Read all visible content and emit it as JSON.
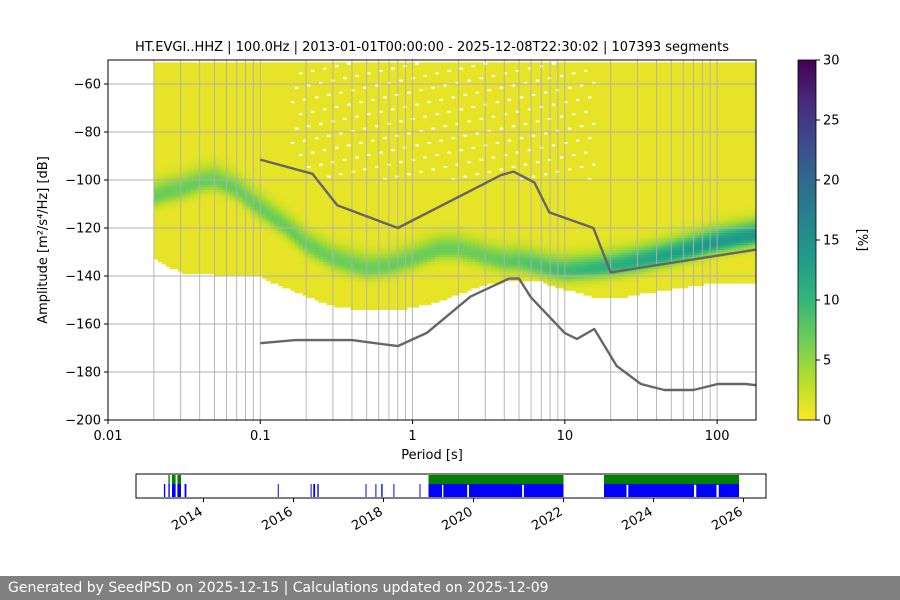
{
  "chart_data": [
    {
      "type": "heatmap",
      "title": "HT.EVGI..HHZ | 100.0Hz | 2013-01-01T00:00:00 - 2025-12-08T22:30:02 | 107393 segments",
      "xlabel": "Period [s]",
      "ylabel": "Amplitude [m²/s⁴/Hz] [dB]",
      "x_scale": "log",
      "xlim": [
        0.01,
        180
      ],
      "ylim": [
        -200,
        -50
      ],
      "x_ticks": [
        {
          "value": 0.01,
          "label": "0.01"
        },
        {
          "value": 0.1,
          "label": "0.1"
        },
        {
          "value": 1,
          "label": "1"
        },
        {
          "value": 10,
          "label": "10"
        },
        {
          "value": 100,
          "label": "100"
        }
      ],
      "y_ticks": [
        {
          "value": -60,
          "label": "−60"
        },
        {
          "value": -80,
          "label": "−80"
        },
        {
          "value": -100,
          "label": "−100"
        },
        {
          "value": -120,
          "label": "−120"
        },
        {
          "value": -140,
          "label": "−140"
        },
        {
          "value": -160,
          "label": "−160"
        },
        {
          "value": -180,
          "label": "−180"
        },
        {
          "value": -200,
          "label": "−200"
        }
      ],
      "grid_periods": [
        0.02,
        0.03,
        0.04,
        0.05,
        0.06,
        0.07,
        0.08,
        0.09,
        0.1,
        0.2,
        0.3,
        0.4,
        0.5,
        0.6,
        0.7,
        0.8,
        0.9,
        1,
        2,
        3,
        4,
        5,
        6,
        7,
        8,
        9,
        10,
        20,
        30,
        40,
        50,
        60,
        70,
        80,
        90,
        100
      ],
      "colorbar": {
        "label": "[%]",
        "range": [
          0,
          30
        ],
        "ticks": [
          "0",
          "5",
          "10",
          "15",
          "20",
          "25",
          "30"
        ],
        "colormap": "viridis_r",
        "colors": [
          "#fde725",
          "#b5de2b",
          "#6ece58",
          "#35b779",
          "#1f9e89",
          "#26828e",
          "#31688e",
          "#3e4989",
          "#482878",
          "#440154"
        ]
      },
      "density_envelope": {
        "period": [
          0.02,
          0.03,
          0.05,
          0.1,
          0.2,
          0.3,
          0.5,
          0.8,
          1.5,
          3,
          5,
          7,
          10,
          15,
          20,
          40,
          80,
          180
        ],
        "upper_db": [
          -51,
          -51,
          -51,
          -51,
          -51,
          -51,
          -51,
          -51,
          -51,
          -51,
          -51,
          -51,
          -51,
          -51,
          -51,
          -51,
          -51,
          -51
        ],
        "lower_db": [
          -132,
          -138,
          -139,
          -140,
          -148,
          -152,
          -154,
          -154,
          -150,
          -143,
          -141,
          -142,
          -145,
          -148,
          -149,
          -146,
          -143,
          -142
        ]
      },
      "mode_line": {
        "period": [
          0.02,
          0.025,
          0.03,
          0.04,
          0.05,
          0.07,
          0.1,
          0.15,
          0.2,
          0.3,
          0.5,
          0.7,
          1,
          1.5,
          2,
          3,
          4,
          5,
          6,
          8,
          10,
          15,
          20,
          30,
          50,
          100,
          180
        ],
        "db": [
          -107,
          -105,
          -104,
          -101,
          -100,
          -104,
          -112,
          -120,
          -127,
          -133,
          -137,
          -136,
          -133,
          -129,
          -129,
          -132,
          -134,
          -134,
          -135,
          -137,
          -138,
          -137,
          -136,
          -134,
          -131,
          -126,
          -123
        ]
      },
      "series": [
        {
          "name": "NHNM",
          "color": "#666666",
          "period": [
            0.1,
            0.22,
            0.32,
            0.8,
            3.8,
            4.6,
            6.3,
            7.9,
            15.4,
            20,
            180
          ],
          "db": [
            -91.5,
            -97.4,
            -110.5,
            -120,
            -98,
            -96.5,
            -101,
            -113.5,
            -120,
            -138.5,
            -129
          ]
        },
        {
          "name": "NLNM",
          "color": "#666666",
          "period": [
            0.1,
            0.17,
            0.4,
            0.8,
            1.24,
            2.4,
            4.3,
            5,
            6,
            10,
            12,
            15.6,
            21.9,
            31.6,
            45,
            70,
            101,
            154,
            180
          ],
          "db": [
            -168,
            -166.7,
            -166.7,
            -169.2,
            -163.7,
            -148.6,
            -141.1,
            -141.1,
            -149,
            -163.8,
            -166.2,
            -162.1,
            -177.5,
            -185,
            -187.5,
            -187.5,
            -185,
            -185,
            -185.5
          ]
        }
      ]
    },
    {
      "type": "timeline",
      "x_ticks": [
        "2014",
        "2016",
        "2018",
        "2020",
        "2022",
        "2024",
        "2026"
      ],
      "xlim": [
        2012.5,
        2026.5
      ],
      "colors": {
        "coverage": "#0000ff",
        "processed": "#008000"
      },
      "coverage_blocks": [
        [
          2013.12,
          2013.15
        ],
        [
          2013.22,
          2013.25
        ],
        [
          2013.3,
          2013.38
        ],
        [
          2013.42,
          2013.5
        ],
        [
          2013.58,
          2013.62
        ],
        [
          2015.65,
          2015.67
        ],
        [
          2016.38,
          2016.4
        ],
        [
          2016.44,
          2016.48
        ],
        [
          2016.53,
          2016.56
        ],
        [
          2017.6,
          2017.62
        ],
        [
          2017.82,
          2017.84
        ],
        [
          2017.95,
          2017.98
        ],
        [
          2018.22,
          2018.24
        ],
        [
          2018.8,
          2018.82
        ],
        [
          2019.0,
          2019.3
        ],
        [
          2019.33,
          2019.86
        ],
        [
          2019.9,
          2021.08
        ],
        [
          2021.12,
          2022.0
        ],
        [
          2022.9,
          2023.4
        ],
        [
          2023.44,
          2024.9
        ],
        [
          2024.95,
          2025.4
        ],
        [
          2025.45,
          2025.9
        ]
      ],
      "processed_blocks": [
        [
          2013.22,
          2013.25
        ],
        [
          2013.3,
          2013.38
        ],
        [
          2013.42,
          2013.5
        ],
        [
          2019.0,
          2022.0
        ],
        [
          2022.9,
          2025.9
        ]
      ]
    }
  ],
  "footer": {
    "text": "Generated by SeedPSD on 2025-12-15 | Calculations updated on 2025-12-09"
  }
}
